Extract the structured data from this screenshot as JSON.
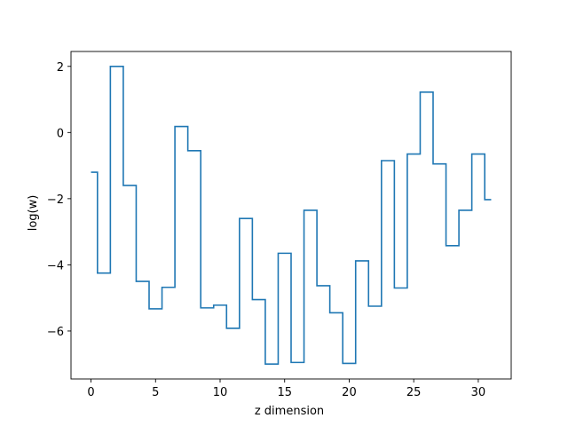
{
  "chart_data": {
    "type": "line",
    "drawstyle": "steps-mid",
    "title": "",
    "xlabel": "z dimension",
    "ylabel": "log(w)",
    "xlim": [
      -1.55,
      32.55
    ],
    "ylim": [
      -7.45,
      2.45
    ],
    "xticks": [
      0,
      5,
      10,
      15,
      20,
      25,
      30
    ],
    "yticks": [
      -6,
      -4,
      -2,
      0,
      2
    ],
    "xtick_labels": [
      "0",
      "5",
      "10",
      "15",
      "20",
      "25",
      "30"
    ],
    "ytick_labels": [
      "−6",
      "−4",
      "−2",
      "0",
      "2"
    ],
    "grid": false,
    "legend": false,
    "series": [
      {
        "color": "#1f77b4",
        "x": [
          0,
          1,
          2,
          3,
          4,
          5,
          6,
          7,
          8,
          9,
          10,
          11,
          12,
          13,
          14,
          15,
          16,
          17,
          18,
          19,
          20,
          21,
          22,
          23,
          24,
          25,
          26,
          27,
          28,
          29,
          30,
          31
        ],
        "values": [
          -1.2,
          -4.25,
          2.0,
          -1.6,
          -4.5,
          -5.33,
          -4.68,
          0.18,
          -0.55,
          -5.3,
          -5.22,
          -5.92,
          -2.6,
          -5.05,
          -7.0,
          -3.65,
          -6.95,
          -2.35,
          -4.63,
          -5.45,
          -6.98,
          -3.88,
          -5.25,
          -0.85,
          -4.7,
          -0.65,
          1.22,
          -0.95,
          -3.42,
          -2.35,
          -0.65,
          -2.03
        ]
      }
    ]
  }
}
